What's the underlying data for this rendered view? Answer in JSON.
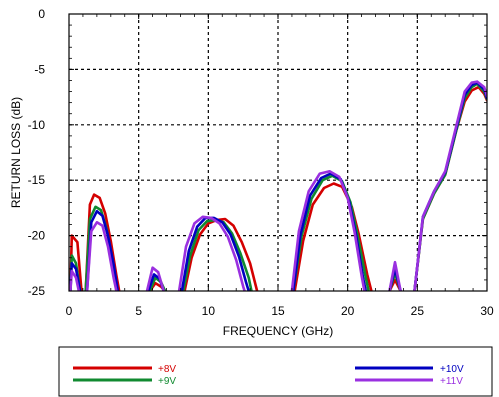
{
  "chart_data": {
    "type": "line",
    "title": "",
    "xlabel": "FREQUENCY (GHz)",
    "ylabel": "RETURN LOSS (dB)",
    "xlim": [
      0,
      30
    ],
    "ylim": [
      -25,
      0
    ],
    "xticks": [
      0,
      5,
      10,
      15,
      20,
      25,
      30
    ],
    "yticks": [
      0,
      -5,
      -10,
      -15,
      -20,
      -25
    ],
    "grid": "dotted",
    "legend_position": "bottom-boxed",
    "series": [
      {
        "name": "+8V",
        "color": "#d40000",
        "segments": [
          [
            [
              0.1,
              -25
            ],
            [
              0.2,
              -20.0
            ],
            [
              0.6,
              -20.6
            ],
            [
              0.9,
              -25
            ]
          ],
          [
            [
              1.2,
              -25
            ],
            [
              1.5,
              -17.2
            ],
            [
              1.8,
              -16.3
            ],
            [
              2.2,
              -16.6
            ],
            [
              2.6,
              -18.0
            ],
            [
              3.0,
              -20.5
            ],
            [
              3.4,
              -23.6
            ],
            [
              3.6,
              -25
            ]
          ],
          [
            [
              5.8,
              -25
            ],
            [
              6.2,
              -24.3
            ],
            [
              6.6,
              -24.6
            ],
            [
              6.9,
              -25
            ]
          ],
          [
            [
              8.3,
              -25
            ],
            [
              8.8,
              -22.0
            ],
            [
              9.4,
              -19.9
            ],
            [
              10.0,
              -18.9
            ],
            [
              10.6,
              -18.6
            ],
            [
              11.2,
              -18.5
            ],
            [
              11.8,
              -19.1
            ],
            [
              12.4,
              -20.6
            ],
            [
              13.0,
              -22.5
            ],
            [
              13.5,
              -25
            ]
          ],
          [
            [
              16.2,
              -25
            ],
            [
              16.8,
              -20.5
            ],
            [
              17.5,
              -17.2
            ],
            [
              18.3,
              -15.7
            ],
            [
              19.0,
              -15.3
            ],
            [
              19.6,
              -15.6
            ],
            [
              20.3,
              -17.4
            ],
            [
              20.8,
              -19.9
            ],
            [
              21.4,
              -23.5
            ],
            [
              21.7,
              -25
            ]
          ],
          [
            [
              23.0,
              -25
            ],
            [
              23.4,
              -24.0
            ],
            [
              23.8,
              -25
            ]
          ],
          [
            [
              24.8,
              -25
            ],
            [
              25.4,
              -18.5
            ],
            [
              26.2,
              -16.2
            ],
            [
              27.0,
              -14.5
            ],
            [
              27.8,
              -10.5
            ],
            [
              28.4,
              -7.9
            ],
            [
              28.9,
              -6.9
            ],
            [
              29.4,
              -6.6
            ],
            [
              29.8,
              -7.2
            ],
            [
              30.0,
              -7.8
            ]
          ]
        ]
      },
      {
        "name": "+9V",
        "color": "#108a30",
        "segments": [
          [
            [
              0.1,
              -25
            ],
            [
              0.2,
              -21.8
            ],
            [
              0.5,
              -22.5
            ],
            [
              0.8,
              -25
            ]
          ],
          [
            [
              1.2,
              -25
            ],
            [
              1.5,
              -18.5
            ],
            [
              1.9,
              -17.4
            ],
            [
              2.3,
              -17.7
            ],
            [
              2.7,
              -19.4
            ],
            [
              3.1,
              -22.0
            ],
            [
              3.4,
              -25
            ]
          ],
          [
            [
              5.8,
              -25
            ],
            [
              6.2,
              -23.8
            ],
            [
              6.6,
              -24.2
            ],
            [
              6.9,
              -25
            ]
          ],
          [
            [
              8.2,
              -25
            ],
            [
              8.7,
              -21.8
            ],
            [
              9.3,
              -19.5
            ],
            [
              9.9,
              -18.7
            ],
            [
              10.5,
              -18.6
            ],
            [
              11.1,
              -18.8
            ],
            [
              11.7,
              -19.8
            ],
            [
              12.3,
              -21.6
            ],
            [
              12.9,
              -23.8
            ],
            [
              13.1,
              -25
            ]
          ],
          [
            [
              16.1,
              -25
            ],
            [
              16.7,
              -20.0
            ],
            [
              17.4,
              -16.7
            ],
            [
              18.2,
              -15.0
            ],
            [
              18.9,
              -14.6
            ],
            [
              19.6,
              -15.1
            ],
            [
              20.2,
              -17.0
            ],
            [
              20.7,
              -19.9
            ],
            [
              21.3,
              -23.8
            ],
            [
              21.5,
              -25
            ]
          ],
          [
            [
              23.0,
              -25
            ],
            [
              23.4,
              -23.4
            ],
            [
              23.8,
              -25
            ]
          ],
          [
            [
              24.8,
              -25
            ],
            [
              25.4,
              -18.5
            ],
            [
              26.2,
              -16.2
            ],
            [
              27.0,
              -14.5
            ],
            [
              27.8,
              -10.5
            ],
            [
              28.4,
              -7.6
            ],
            [
              28.9,
              -6.6
            ],
            [
              29.3,
              -6.3
            ],
            [
              29.8,
              -7.0
            ],
            [
              30.0,
              -7.7
            ]
          ]
        ]
      },
      {
        "name": "+10V",
        "color": "#0000c0",
        "segments": [
          [
            [
              0.1,
              -25
            ],
            [
              0.2,
              -22.5
            ],
            [
              0.5,
              -23.0
            ],
            [
              0.8,
              -25
            ]
          ],
          [
            [
              1.3,
              -25
            ],
            [
              1.6,
              -18.8
            ],
            [
              2.0,
              -17.8
            ],
            [
              2.4,
              -18.2
            ],
            [
              2.8,
              -20.0
            ],
            [
              3.2,
              -22.6
            ],
            [
              3.5,
              -25
            ]
          ],
          [
            [
              5.7,
              -25
            ],
            [
              6.1,
              -23.5
            ],
            [
              6.5,
              -23.9
            ],
            [
              6.8,
              -25
            ]
          ],
          [
            [
              8.1,
              -25
            ],
            [
              8.6,
              -21.4
            ],
            [
              9.2,
              -19.2
            ],
            [
              9.8,
              -18.4
            ],
            [
              10.4,
              -18.4
            ],
            [
              11.0,
              -18.8
            ],
            [
              11.6,
              -19.9
            ],
            [
              12.2,
              -21.9
            ],
            [
              12.7,
              -24.2
            ],
            [
              12.9,
              -25
            ]
          ],
          [
            [
              16.1,
              -25
            ],
            [
              16.6,
              -20.0
            ],
            [
              17.3,
              -16.4
            ],
            [
              18.1,
              -14.8
            ],
            [
              18.8,
              -14.4
            ],
            [
              19.5,
              -14.9
            ],
            [
              20.1,
              -16.9
            ],
            [
              20.6,
              -19.9
            ],
            [
              21.1,
              -23.8
            ],
            [
              21.3,
              -25
            ]
          ],
          [
            [
              23.0,
              -25
            ],
            [
              23.4,
              -23.0
            ],
            [
              23.8,
              -25
            ]
          ],
          [
            [
              24.8,
              -25
            ],
            [
              25.4,
              -18.3
            ],
            [
              26.2,
              -16.0
            ],
            [
              27.0,
              -14.3
            ],
            [
              27.8,
              -10.3
            ],
            [
              28.4,
              -7.3
            ],
            [
              28.9,
              -6.4
            ],
            [
              29.3,
              -6.2
            ],
            [
              29.8,
              -6.8
            ],
            [
              30.0,
              -7.6
            ]
          ]
        ]
      },
      {
        "name": "+11V",
        "color": "#9a30e0",
        "segments": [
          [
            [
              0.1,
              -25
            ],
            [
              0.2,
              -23.2
            ],
            [
              0.5,
              -23.8
            ],
            [
              0.7,
              -25
            ]
          ],
          [
            [
              1.3,
              -25
            ],
            [
              1.6,
              -19.6
            ],
            [
              2.0,
              -18.8
            ],
            [
              2.4,
              -19.1
            ],
            [
              2.8,
              -21.0
            ],
            [
              3.2,
              -23.8
            ],
            [
              3.4,
              -25
            ]
          ],
          [
            [
              5.6,
              -25
            ],
            [
              6.0,
              -22.9
            ],
            [
              6.4,
              -23.3
            ],
            [
              6.8,
              -25
            ]
          ],
          [
            [
              7.9,
              -25
            ],
            [
              8.4,
              -21.0
            ],
            [
              9.0,
              -18.9
            ],
            [
              9.6,
              -18.3
            ],
            [
              10.2,
              -18.4
            ],
            [
              10.8,
              -18.9
            ],
            [
              11.4,
              -20.1
            ],
            [
              12.0,
              -22.2
            ],
            [
              12.5,
              -24.6
            ],
            [
              12.6,
              -25
            ]
          ],
          [
            [
              16.0,
              -25
            ],
            [
              16.5,
              -19.6
            ],
            [
              17.2,
              -16.0
            ],
            [
              18.0,
              -14.4
            ],
            [
              18.7,
              -14.2
            ],
            [
              19.4,
              -14.7
            ],
            [
              20.0,
              -16.6
            ],
            [
              20.5,
              -19.7
            ],
            [
              21.0,
              -23.6
            ],
            [
              21.2,
              -25
            ]
          ],
          [
            [
              23.0,
              -25
            ],
            [
              23.4,
              -22.4
            ],
            [
              23.8,
              -25
            ]
          ],
          [
            [
              24.8,
              -25
            ],
            [
              25.4,
              -18.3
            ],
            [
              26.2,
              -16.0
            ],
            [
              27.0,
              -14.2
            ],
            [
              27.8,
              -10.1
            ],
            [
              28.4,
              -7.0
            ],
            [
              28.9,
              -6.2
            ],
            [
              29.3,
              -6.1
            ],
            [
              29.8,
              -6.6
            ],
            [
              30.0,
              -7.4
            ]
          ]
        ]
      }
    ]
  }
}
